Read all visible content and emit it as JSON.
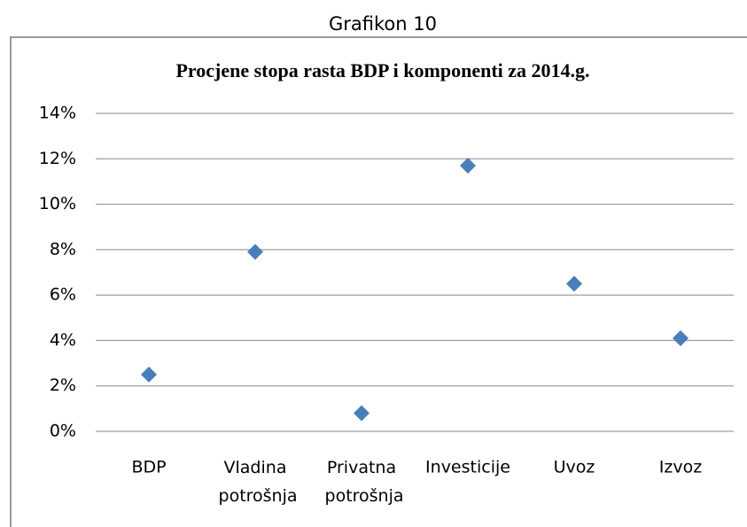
{
  "heading": "Grafikon 10",
  "chart_data": {
    "type": "scatter",
    "title": "Procjene stopa rasta BDP i komponenti za 2014.g.",
    "categories": [
      "BDP",
      "Vladina potrošnja",
      "Privatna potrošnja",
      "Investicije",
      "Uvoz",
      "Izvoz"
    ],
    "values": [
      2.5,
      7.9,
      0.8,
      11.7,
      6.5,
      4.1
    ],
    "color": "#4a7ebb",
    "ylim": [
      0,
      14
    ],
    "yticks": [
      {
        "value": 0,
        "label": "0%"
      },
      {
        "value": 2,
        "label": "2%"
      },
      {
        "value": 4,
        "label": "4%"
      },
      {
        "value": 6,
        "label": "6%"
      },
      {
        "value": 8,
        "label": "8%"
      },
      {
        "value": 10,
        "label": "10%"
      },
      {
        "value": 12,
        "label": "12%"
      },
      {
        "value": 14,
        "label": "14%"
      }
    ],
    "grid": true
  }
}
